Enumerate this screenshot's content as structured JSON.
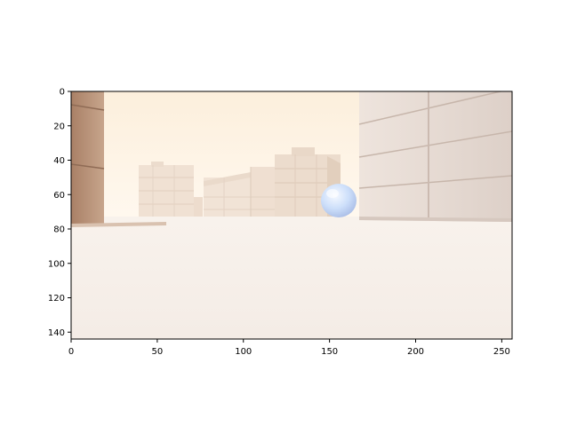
{
  "figure": {
    "image_description": "first-person 3D maze view with white block walls and a pale blue sphere",
    "xlim": [
      0,
      256
    ],
    "ylim": [
      144,
      0
    ],
    "x_ticks": [
      0,
      50,
      100,
      150,
      200,
      250
    ],
    "y_ticks": [
      0,
      20,
      40,
      60,
      80,
      100,
      120,
      140
    ],
    "scene_colors": {
      "sky": "#fbeedc",
      "floor": "#f6f0ea",
      "left_wall": "#b48e73",
      "right_wall": "#e5d9d2",
      "blocks": "#efe0d2",
      "sphere": "#cfe0fb"
    }
  }
}
